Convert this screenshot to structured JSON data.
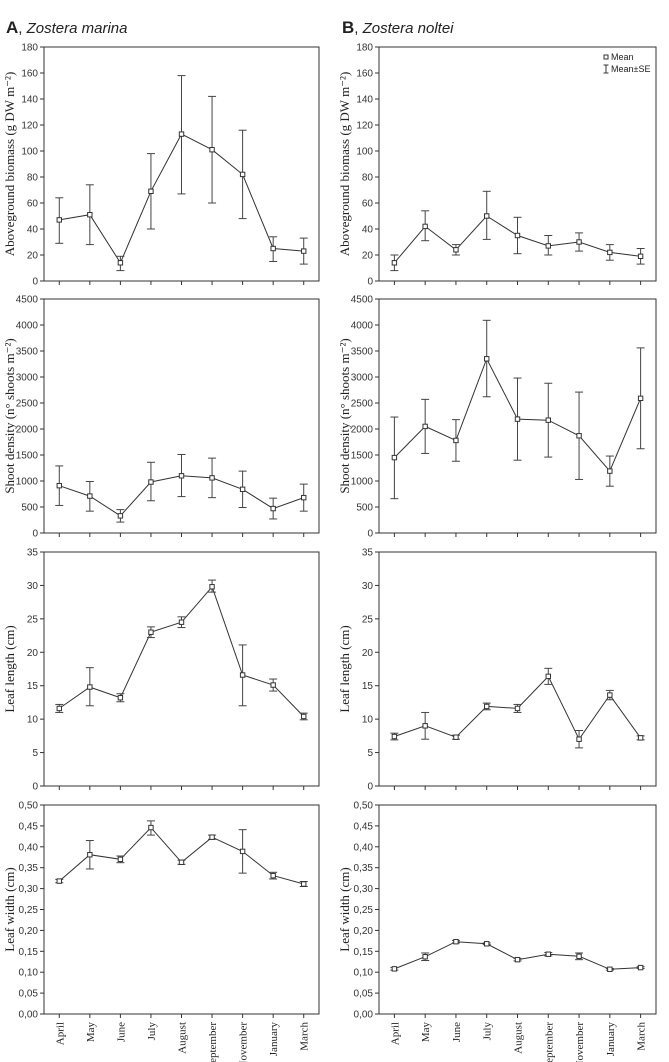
{
  "panels": {
    "A": {
      "letter": "A",
      "species": "Zostera marina"
    },
    "B": {
      "letter": "B",
      "species": "Zostera noltei"
    }
  },
  "legend": {
    "mean": "Mean",
    "meanse": "Mean±SE"
  },
  "chart_data": [
    {
      "type": "line",
      "panel": "A",
      "row": 0,
      "ylabel": "Aboveground biomass (g DW m⁻²)",
      "ylim": [
        0,
        180
      ],
      "yticks": [
        "0",
        "20",
        "40",
        "60",
        "80",
        "100",
        "120",
        "140",
        "160",
        "180"
      ],
      "categories": [
        "April",
        "May",
        "June",
        "July",
        "August",
        "September",
        "November",
        "January",
        "March"
      ],
      "values": [
        47,
        51,
        14,
        69,
        113,
        101,
        82,
        25,
        23
      ],
      "se_low": [
        29,
        28,
        8,
        40,
        67,
        60,
        48,
        15,
        13
      ],
      "se_high": [
        64,
        74,
        19,
        98,
        158,
        142,
        116,
        34,
        33
      ]
    },
    {
      "type": "line",
      "panel": "B",
      "row": 0,
      "ylabel": "Aboveground biomass (g DW m⁻²)",
      "ylim": [
        0,
        180
      ],
      "yticks": [
        "0",
        "20",
        "40",
        "60",
        "80",
        "100",
        "120",
        "140",
        "160",
        "180"
      ],
      "categories": [
        "April",
        "May",
        "June",
        "July",
        "August",
        "September",
        "November",
        "January",
        "March"
      ],
      "values": [
        14,
        42,
        24,
        50,
        35,
        27,
        30,
        22,
        19
      ],
      "se_low": [
        8,
        31,
        20,
        32,
        21,
        20,
        23,
        16,
        13
      ],
      "se_high": [
        20,
        54,
        28,
        69,
        49,
        35,
        37,
        28,
        25
      ],
      "legend": true
    },
    {
      "type": "line",
      "panel": "A",
      "row": 1,
      "ylabel": "Shoot density (n° shoots m⁻²)",
      "ylim": [
        0,
        4500
      ],
      "yticks": [
        "0",
        "500",
        "1000",
        "1500",
        "2000",
        "2500",
        "3000",
        "3500",
        "4000",
        "4500"
      ],
      "categories": [
        "April",
        "May",
        "June",
        "July",
        "August",
        "September",
        "November",
        "January",
        "March"
      ],
      "values": [
        910,
        710,
        330,
        980,
        1100,
        1060,
        840,
        470,
        680
      ],
      "se_low": [
        530,
        420,
        210,
        620,
        700,
        680,
        490,
        270,
        420
      ],
      "se_high": [
        1290,
        990,
        450,
        1360,
        1510,
        1440,
        1190,
        670,
        940
      ]
    },
    {
      "type": "line",
      "panel": "B",
      "row": 1,
      "ylabel": "Shoot density (n° shoots m⁻²)",
      "ylim": [
        0,
        4500
      ],
      "yticks": [
        "0",
        "500",
        "1000",
        "1500",
        "2000",
        "2500",
        "3000",
        "3500",
        "4000",
        "4500"
      ],
      "categories": [
        "April",
        "May",
        "June",
        "July",
        "August",
        "September",
        "November",
        "January",
        "March"
      ],
      "values": [
        1450,
        2050,
        1780,
        3350,
        2190,
        2170,
        1870,
        1190,
        2590
      ],
      "se_low": [
        660,
        1530,
        1380,
        2620,
        1400,
        1460,
        1030,
        900,
        1620
      ],
      "se_high": [
        2230,
        2570,
        2180,
        4090,
        2980,
        2880,
        2710,
        1480,
        3560
      ]
    },
    {
      "type": "line",
      "panel": "A",
      "row": 2,
      "ylabel": "Leaf length (cm)",
      "ylim": [
        0,
        35
      ],
      "yticks": [
        "0",
        "5",
        "10",
        "15",
        "20",
        "25",
        "30",
        "35"
      ],
      "categories": [
        "April",
        "May",
        "June",
        "July",
        "August",
        "September",
        "November",
        "January",
        "March"
      ],
      "values": [
        11.6,
        14.8,
        13.2,
        23.0,
        24.5,
        29.8,
        16.6,
        15.1,
        10.4
      ],
      "se_low": [
        11.0,
        12.0,
        12.6,
        22.2,
        23.7,
        29.0,
        12.0,
        14.2,
        9.9
      ],
      "se_high": [
        12.2,
        17.7,
        13.8,
        23.8,
        25.3,
        30.8,
        21.1,
        16.0,
        10.9
      ]
    },
    {
      "type": "line",
      "panel": "B",
      "row": 2,
      "ylabel": "Leaf length (cm)",
      "ylim": [
        0,
        35
      ],
      "yticks": [
        "0",
        "5",
        "10",
        "15",
        "20",
        "25",
        "30",
        "35"
      ],
      "categories": [
        "April",
        "May",
        "June",
        "July",
        "August",
        "September",
        "November",
        "January",
        "March"
      ],
      "values": [
        7.4,
        9.0,
        7.3,
        11.9,
        11.6,
        16.4,
        7.0,
        13.6,
        7.2
      ],
      "se_low": [
        6.9,
        7.0,
        7.0,
        11.4,
        11.0,
        15.2,
        5.7,
        12.9,
        6.9
      ],
      "se_high": [
        7.9,
        11.0,
        7.6,
        12.4,
        12.2,
        17.6,
        8.3,
        14.3,
        7.5
      ]
    },
    {
      "type": "line",
      "panel": "A",
      "row": 3,
      "ylabel": "Leaf width (cm)",
      "ylim": [
        0,
        0.5
      ],
      "yticks": [
        "0,00",
        "0,05",
        "0,10",
        "0,15",
        "0,20",
        "0,25",
        "0,30",
        "0,35",
        "0,40",
        "0,45",
        "0,50"
      ],
      "categories": [
        "April",
        "May",
        "June",
        "July",
        "August",
        "September",
        "November",
        "January",
        "March"
      ],
      "values": [
        0.318,
        0.381,
        0.37,
        0.446,
        0.363,
        0.423,
        0.389,
        0.331,
        0.311
      ],
      "se_low": [
        0.314,
        0.347,
        0.362,
        0.428,
        0.358,
        0.418,
        0.337,
        0.323,
        0.305
      ],
      "se_high": [
        0.322,
        0.415,
        0.378,
        0.462,
        0.368,
        0.428,
        0.441,
        0.339,
        0.317
      ]
    },
    {
      "type": "line",
      "panel": "B",
      "row": 3,
      "ylabel": "Leaf width (cm)",
      "ylim": [
        0,
        0.5
      ],
      "yticks": [
        "0,00",
        "0,05",
        "0,10",
        "0,15",
        "0,20",
        "0,25",
        "0,30",
        "0,35",
        "0,40",
        "0,45",
        "0,50"
      ],
      "categories": [
        "April",
        "May",
        "June",
        "July",
        "August",
        "September",
        "November",
        "January",
        "March"
      ],
      "values": [
        0.108,
        0.137,
        0.173,
        0.168,
        0.13,
        0.143,
        0.138,
        0.107,
        0.111
      ],
      "se_low": [
        0.105,
        0.128,
        0.17,
        0.166,
        0.127,
        0.139,
        0.13,
        0.105,
        0.109
      ],
      "se_high": [
        0.111,
        0.146,
        0.176,
        0.17,
        0.133,
        0.147,
        0.146,
        0.109,
        0.113
      ]
    }
  ]
}
